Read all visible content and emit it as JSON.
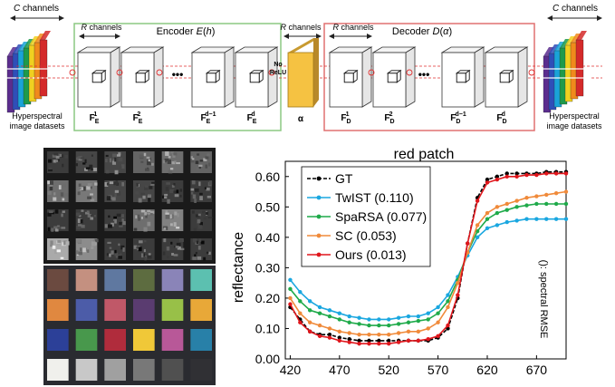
{
  "top_diagram": {
    "left_stack": {
      "channels_label": "C channels",
      "caption_line1": "Hyperspectral",
      "caption_line2": "image datasets"
    },
    "right_stack": {
      "channels_label": "C channels",
      "caption_line1": "Hyperspectral",
      "caption_line2": "image datasets"
    },
    "encoder": {
      "title": "Encoder E(h)",
      "channels_label": "R channels",
      "layers": [
        "F",
        "F",
        "F",
        "F"
      ],
      "layer_sub": [
        "E",
        "E",
        "E",
        "E"
      ],
      "layer_sup": [
        "1",
        "2",
        "d−1",
        "d"
      ]
    },
    "decoder": {
      "title": "Decoder D(α)",
      "channels_label": "R channels",
      "layers": [
        "F",
        "F",
        "F",
        "F"
      ],
      "layer_sub": [
        "D",
        "D",
        "D",
        "D"
      ],
      "layer_sup": [
        "1",
        "2",
        "d−1",
        "d"
      ]
    },
    "alpha": {
      "channels_label": "R channels",
      "label": "α"
    },
    "no_relu": {
      "line1": "No",
      "line2": "ReLU"
    },
    "ellipsis": "•••",
    "stack_colors": [
      "#5b2d8e",
      "#2f4fb8",
      "#1aa3d8",
      "#1e9a4b",
      "#f0d020",
      "#f08a1c",
      "#d42a2a"
    ]
  },
  "chart_data": {
    "type": "line",
    "title": "red patch",
    "xlabel": "",
    "ylabel": "reflectance",
    "ylim": [
      0.0,
      0.65
    ],
    "xlim": [
      415,
      700
    ],
    "xticks": [
      420,
      470,
      520,
      570,
      620,
      670
    ],
    "yticks": [
      "0.00",
      "0.10",
      "0.20",
      "0.30",
      "0.40",
      "0.50",
      "0.60"
    ],
    "annotation": "(): spectral RMSE",
    "x": [
      420,
      430,
      440,
      450,
      460,
      470,
      480,
      490,
      500,
      510,
      520,
      530,
      540,
      550,
      560,
      570,
      580,
      590,
      600,
      610,
      620,
      630,
      640,
      650,
      660,
      670,
      680,
      690,
      700
    ],
    "series": [
      {
        "name": "GT",
        "color": "#000000",
        "dashed": true,
        "values": [
          0.17,
          0.13,
          0.09,
          0.08,
          0.08,
          0.07,
          0.065,
          0.06,
          0.06,
          0.06,
          0.06,
          0.06,
          0.06,
          0.06,
          0.06,
          0.07,
          0.1,
          0.2,
          0.38,
          0.53,
          0.59,
          0.6,
          0.61,
          0.61,
          0.61,
          0.61,
          0.615,
          0.615,
          0.615
        ]
      },
      {
        "name": "TwIST (0.110)",
        "color": "#1aa7e0",
        "dashed": false,
        "values": [
          0.26,
          0.22,
          0.19,
          0.17,
          0.16,
          0.15,
          0.14,
          0.135,
          0.13,
          0.13,
          0.13,
          0.135,
          0.14,
          0.14,
          0.15,
          0.17,
          0.21,
          0.27,
          0.34,
          0.4,
          0.43,
          0.44,
          0.45,
          0.455,
          0.46,
          0.46,
          0.46,
          0.46,
          0.46
        ]
      },
      {
        "name": "SpaRSA (0.077)",
        "color": "#1faa4a",
        "dashed": false,
        "values": [
          0.23,
          0.19,
          0.16,
          0.15,
          0.14,
          0.13,
          0.12,
          0.115,
          0.11,
          0.11,
          0.11,
          0.115,
          0.12,
          0.125,
          0.13,
          0.15,
          0.19,
          0.26,
          0.35,
          0.42,
          0.46,
          0.48,
          0.49,
          0.5,
          0.505,
          0.51,
          0.51,
          0.51,
          0.51
        ]
      },
      {
        "name": "SC (0.053)",
        "color": "#f08a3a",
        "dashed": false,
        "values": [
          0.2,
          0.15,
          0.12,
          0.11,
          0.1,
          0.09,
          0.085,
          0.08,
          0.08,
          0.08,
          0.08,
          0.085,
          0.09,
          0.09,
          0.1,
          0.12,
          0.17,
          0.25,
          0.35,
          0.44,
          0.48,
          0.5,
          0.51,
          0.52,
          0.53,
          0.535,
          0.54,
          0.545,
          0.55
        ]
      },
      {
        "name": "Ours (0.013)",
        "color": "#e0161c",
        "dashed": false,
        "values": [
          0.18,
          0.12,
          0.09,
          0.075,
          0.07,
          0.06,
          0.055,
          0.05,
          0.05,
          0.05,
          0.05,
          0.055,
          0.06,
          0.06,
          0.065,
          0.075,
          0.11,
          0.21,
          0.38,
          0.52,
          0.58,
          0.59,
          0.6,
          0.6,
          0.605,
          0.605,
          0.61,
          0.61,
          0.61
        ]
      }
    ]
  },
  "images": {
    "grayscale_levels": [
      [
        0.3,
        0.35,
        0.35,
        0.5,
        0.55,
        0.5
      ],
      [
        0.55,
        0.6,
        0.35,
        0.35,
        0.3,
        0.3
      ],
      [
        0.3,
        0.3,
        0.3,
        0.55,
        0.65,
        0.3
      ],
      [
        0.85,
        0.7,
        0.3,
        0.3,
        0.3,
        0.3
      ]
    ],
    "checker_colors": [
      [
        "#6b4a40",
        "#c49080",
        "#5f78a0",
        "#5d6c40",
        "#8a84b8",
        "#5cc0b0"
      ],
      [
        "#e08840",
        "#4c5ca8",
        "#c05868",
        "#5a3c70",
        "#98c048",
        "#e8a838"
      ],
      [
        "#2c4098",
        "#48984c",
        "#b02c3c",
        "#f0c838",
        "#b85898",
        "#2880a8"
      ],
      [
        "#f0f0ec",
        "#c8c8c8",
        "#a0a0a0",
        "#787878",
        "#505050",
        "#303034"
      ]
    ]
  }
}
